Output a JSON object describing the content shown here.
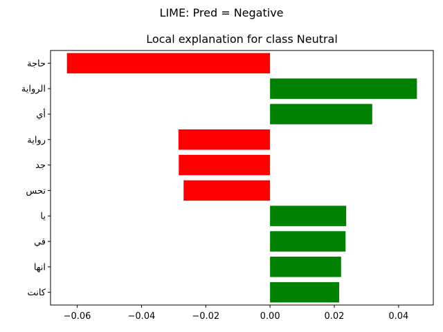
{
  "suptitle": "LIME: Pred = Negative",
  "chart_data": {
    "type": "bar",
    "orientation": "horizontal",
    "title": "Local explanation for class Neutral",
    "xlabel": "",
    "ylabel": "",
    "categories": [
      "حاجة",
      "الرواية",
      "أي",
      "رواية",
      "جد",
      "تحس",
      "يا",
      "في",
      "انها",
      "كانت"
    ],
    "values": [
      -0.0632,
      0.0457,
      0.0318,
      -0.0285,
      -0.0284,
      -0.0269,
      0.0237,
      0.0235,
      0.0221,
      0.0215
    ],
    "xlim": [
      -0.0683,
      0.0508
    ],
    "xticks": [
      -0.06,
      -0.04,
      -0.02,
      0.0,
      0.02,
      0.04
    ],
    "xtick_labels": [
      "−0.06",
      "−0.04",
      "−0.02",
      "0.00",
      "0.02",
      "0.04"
    ],
    "colors": {
      "positive": "#008000",
      "negative": "#ff0000"
    },
    "grid": false,
    "legend": false
  }
}
